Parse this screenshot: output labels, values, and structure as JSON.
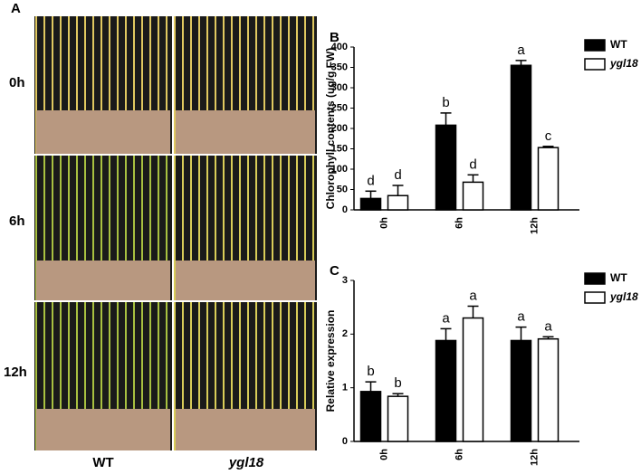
{
  "panel_a": {
    "label": "A",
    "rows": [
      "0h",
      "6h",
      "12h"
    ],
    "columns": [
      "WT",
      "ygl18"
    ]
  },
  "chart_data": [
    {
      "type": "bar",
      "panel": "B",
      "y_label": "Chlorophyll contents (ug/g FW)",
      "categories": [
        "0h",
        "6h",
        "12h"
      ],
      "series": [
        {
          "name": "WT",
          "color": "#000000",
          "values": [
            28,
            208,
            355
          ],
          "errors": [
            18,
            30,
            12
          ],
          "letters": [
            "d",
            "b",
            "a"
          ]
        },
        {
          "name": "ygl18",
          "color": "#ffffff",
          "values": [
            35,
            68,
            153
          ],
          "errors": [
            25,
            18,
            3
          ],
          "letters": [
            "d",
            "d",
            "c"
          ]
        }
      ],
      "ylim": [
        0,
        400
      ],
      "yticks": [
        0,
        50,
        100,
        150,
        200,
        250,
        300,
        350,
        400
      ]
    },
    {
      "type": "bar",
      "panel": "C",
      "y_label": "Relative expression",
      "categories": [
        "0h",
        "6h",
        "12h"
      ],
      "series": [
        {
          "name": "WT",
          "color": "#000000",
          "values": [
            0.93,
            1.88,
            1.88
          ],
          "errors": [
            0.18,
            0.22,
            0.25
          ],
          "letters": [
            "b",
            "a",
            "a"
          ]
        },
        {
          "name": "ygl18",
          "color": "#ffffff",
          "values": [
            0.84,
            2.3,
            1.91
          ],
          "errors": [
            0.05,
            0.22,
            0.04
          ],
          "letters": [
            "b",
            "a",
            "a"
          ]
        }
      ],
      "ylim": [
        0,
        3
      ],
      "yticks": [
        0,
        1,
        2,
        3
      ]
    }
  ]
}
